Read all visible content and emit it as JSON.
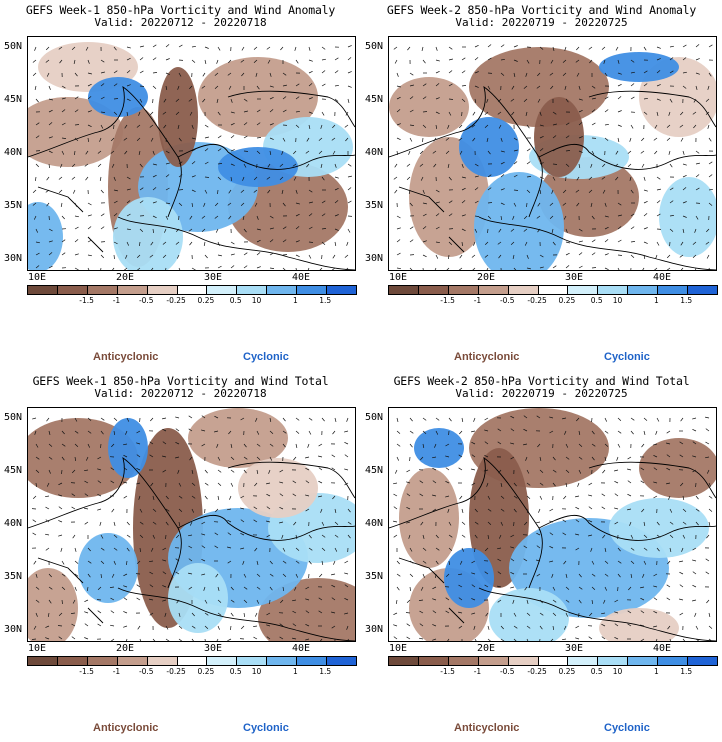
{
  "panels": [
    {
      "title": "GEFS Week-1 850-hPa Vorticity and Wind Anomaly",
      "valid": "Valid: 20220712 - 20220718",
      "field": "anomaly"
    },
    {
      "title": "GEFS Week-2 850-hPa Vorticity and Wind Anomaly",
      "valid": "Valid: 20220719 - 20220725",
      "field": "anomaly"
    },
    {
      "title": "GEFS Week-1 850-hPa Vorticity and Wind Total",
      "valid": "Valid: 20220712 - 20220718",
      "field": "total"
    },
    {
      "title": "GEFS Week-2 850-hPa Vorticity and Wind Total",
      "valid": "Valid: 20220719 - 20220725",
      "field": "total"
    }
  ],
  "lat_labels": [
    "50N",
    "45N",
    "40N",
    "35N",
    "30N"
  ],
  "lon_labels": [
    "10E",
    "20E",
    "30E",
    "40E"
  ],
  "colorbar": {
    "ticks": [
      "-1.5",
      "-1",
      "-0.5",
      "-0.25",
      "0.25",
      "0.5",
      "1",
      "1.5"
    ],
    "scale_label": "10",
    "colors": [
      "#6e4a3b",
      "#8a5d4c",
      "#a47866",
      "#c49e8d",
      "#e6cfc4",
      "#ffffff",
      "#d3f0fb",
      "#a9def6",
      "#6fb6ee",
      "#3f8ee4",
      "#1f63d6"
    ]
  },
  "legend": {
    "anticyclonic": "Anticyclonic",
    "cyclonic": "Cyclonic"
  },
  "map_extent": {
    "lon": [
      8,
      47
    ],
    "lat": [
      29,
      51
    ]
  }
}
